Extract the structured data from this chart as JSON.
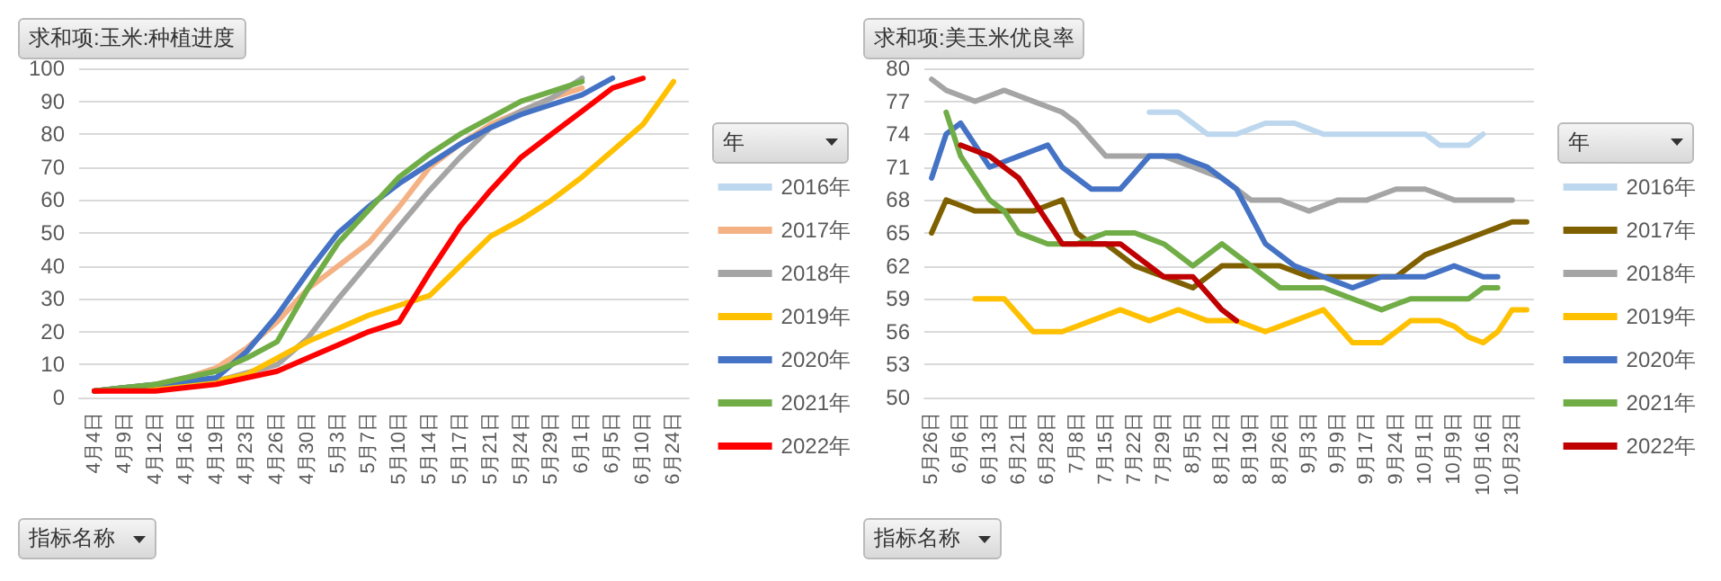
{
  "chart_data": [
    {
      "type": "line",
      "title": "求和项:玉米:种植进度",
      "legend_title": "年",
      "annotations": [
        "指标名称"
      ],
      "legend": "right",
      "grid": "y",
      "marker": "none",
      "ylim": [
        0,
        100
      ],
      "yticks": [
        0,
        10,
        20,
        30,
        40,
        50,
        60,
        70,
        80,
        90,
        100
      ],
      "categories": [
        "4月4日",
        "4月9日",
        "4月12日",
        "4月16日",
        "4月19日",
        "4月23日",
        "4月26日",
        "4月30日",
        "5月3日",
        "5月7日",
        "5月10日",
        "5月14日",
        "5月17日",
        "5月21日",
        "5月24日",
        "5月29日",
        "6月1日",
        "6月5日",
        "6月10日",
        "6月24日"
      ],
      "series": [
        {
          "name": "2016年",
          "color": "#bdd7ee",
          "values": [
            null,
            null,
            null,
            null,
            null,
            null,
            null,
            null,
            null,
            null,
            null,
            null,
            null,
            null,
            null,
            null,
            null,
            null,
            null,
            null
          ]
        },
        {
          "name": "2017年",
          "color": "#f4b183",
          "values": [
            2,
            3,
            4,
            6,
            9,
            15,
            23,
            33,
            40,
            47,
            58,
            70,
            77,
            83,
            87,
            91,
            94,
            null,
            null,
            null
          ]
        },
        {
          "name": "2018年",
          "color": "#a5a5a5",
          "values": [
            2,
            3,
            3,
            4,
            5,
            null,
            10,
            18,
            30,
            41,
            52,
            63,
            73,
            82,
            87,
            91,
            97,
            null,
            null,
            null
          ]
        },
        {
          "name": "2019年",
          "color": "#ffc000",
          "values": [
            2,
            null,
            3,
            4,
            5,
            7,
            12,
            17,
            21,
            25,
            28,
            31,
            40,
            49,
            54,
            60,
            67,
            75,
            83,
            96
          ]
        },
        {
          "name": "2020年",
          "color": "#4472c4",
          "values": [
            2,
            3,
            4,
            5,
            6,
            14,
            25,
            38,
            50,
            58,
            65,
            71,
            77,
            82,
            86,
            89,
            92,
            97,
            null,
            null
          ]
        },
        {
          "name": "2021年",
          "color": "#70ad47",
          "values": [
            2,
            3,
            4,
            6,
            8,
            12,
            17,
            33,
            47,
            57,
            67,
            74,
            80,
            85,
            90,
            93,
            96,
            null,
            null,
            null
          ]
        },
        {
          "name": "2022年",
          "color": "#ff0000",
          "values": [
            2,
            2,
            2,
            3,
            4,
            6,
            8,
            12,
            16,
            20,
            23,
            38,
            52,
            63,
            73,
            80,
            87,
            94,
            97,
            null
          ]
        }
      ]
    },
    {
      "type": "line",
      "title": "求和项:美玉米优良率",
      "legend_title": "年",
      "annotations": [
        "指标名称"
      ],
      "legend": "right",
      "grid": "y",
      "marker": "none",
      "ylim": [
        50,
        80
      ],
      "yticks": [
        50,
        53,
        56,
        59,
        62,
        65,
        68,
        71,
        74,
        77,
        80
      ],
      "categories": [
        "5月26日",
        null,
        "6月6日",
        null,
        "6月13日",
        null,
        "6月21日",
        null,
        "6月28日",
        null,
        "7月8日",
        null,
        "7月15日",
        null,
        "7月22日",
        null,
        "7月29日",
        null,
        "8月5日",
        null,
        "8月12日",
        null,
        "8月19日",
        null,
        "8月26日",
        null,
        "9月3日",
        null,
        "9月9日",
        null,
        "9月17日",
        null,
        "9月24日",
        null,
        "10月1日",
        null,
        "10月9日",
        null,
        "10月16日",
        null,
        "10月23日",
        null
      ],
      "series": [
        {
          "name": "2016年",
          "color": "#bdd7ee",
          "values": [
            null,
            null,
            null,
            null,
            null,
            null,
            null,
            null,
            null,
            null,
            null,
            null,
            null,
            null,
            null,
            76,
            76,
            76,
            75,
            74,
            74,
            74,
            74.5,
            75,
            75,
            75,
            74.5,
            74,
            74,
            74,
            74,
            74,
            74,
            74,
            74,
            73,
            73,
            73,
            74,
            null,
            null,
            null
          ]
        },
        {
          "name": "2017年",
          "color": "#7f6000",
          "values": [
            65,
            68,
            67.5,
            67,
            67,
            67,
            67,
            67,
            67.5,
            68,
            65,
            64,
            64,
            63,
            62,
            61.5,
            61,
            60.5,
            60,
            61,
            62,
            62,
            62,
            62,
            62,
            61.5,
            61,
            61,
            61,
            61,
            61,
            61,
            61,
            62,
            63,
            63.5,
            64,
            64.5,
            65,
            65.5,
            66,
            66
          ]
        },
        {
          "name": "2018年",
          "color": "#a5a5a5",
          "values": [
            79,
            78,
            77.5,
            77,
            77.5,
            78,
            77.5,
            77,
            76.5,
            76,
            75,
            73.5,
            72,
            72,
            72,
            72,
            72,
            71.5,
            71,
            70.5,
            70,
            69,
            68,
            68,
            68,
            67.5,
            67,
            67.5,
            68,
            68,
            68,
            68.5,
            69,
            69,
            69,
            68.5,
            68,
            68,
            68,
            68,
            68,
            null
          ]
        },
        {
          "name": "2019年",
          "color": "#ffc000",
          "values": [
            null,
            null,
            null,
            59,
            59,
            59,
            57.5,
            56,
            56,
            56,
            56.5,
            57,
            57.5,
            58,
            57.5,
            57,
            57.5,
            58,
            57.5,
            57,
            57,
            57,
            56.5,
            56,
            56.5,
            57,
            57.5,
            58,
            56.5,
            55,
            55,
            55,
            56,
            57,
            57,
            57,
            56.5,
            55.5,
            55,
            56,
            58,
            58
          ]
        },
        {
          "name": "2020年",
          "color": "#4472c4",
          "values": [
            70,
            74,
            75,
            73,
            71,
            71.5,
            72,
            72.5,
            73,
            71,
            70,
            69,
            69,
            69,
            70.5,
            72,
            72,
            72,
            71.5,
            71,
            70,
            69,
            66.5,
            64,
            63,
            62,
            61.5,
            61,
            60.5,
            60,
            60.5,
            61,
            61,
            61,
            61,
            61.5,
            62,
            61.5,
            61,
            61,
            null,
            null
          ]
        },
        {
          "name": "2021年",
          "color": "#70ad47",
          "values": [
            null,
            76,
            72,
            70,
            68,
            67,
            65,
            64.5,
            64,
            64,
            64,
            64.5,
            65,
            65,
            65,
            64.5,
            64,
            63,
            62,
            63,
            64,
            63,
            62,
            61,
            60,
            60,
            60,
            60,
            59.5,
            59,
            58.5,
            58,
            58.5,
            59,
            59,
            59,
            59,
            59,
            60,
            60,
            null,
            null
          ]
        },
        {
          "name": "2022年",
          "color": "#c00000",
          "values": [
            null,
            null,
            73,
            72.5,
            72,
            71,
            70,
            68,
            66,
            64,
            64,
            64,
            64,
            64,
            63,
            62,
            61,
            61,
            61,
            59.5,
            58,
            57,
            null,
            null,
            null,
            null,
            null,
            null,
            null,
            null,
            null,
            null,
            null,
            null,
            null,
            null,
            null,
            null,
            null,
            null,
            null,
            null
          ]
        }
      ]
    }
  ]
}
